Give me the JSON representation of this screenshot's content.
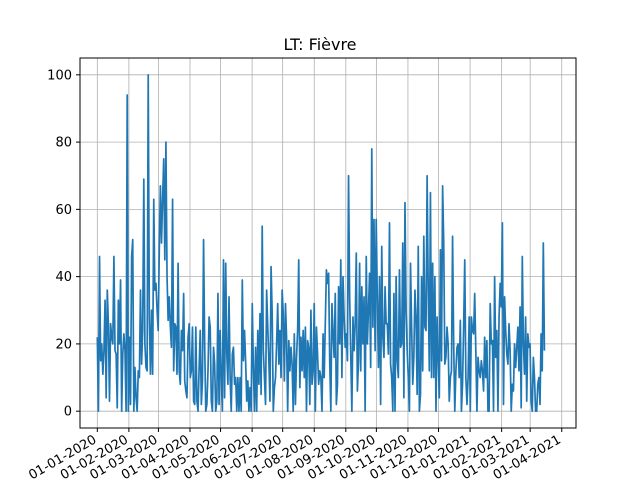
{
  "chart_data": {
    "type": "line",
    "title": "LT: Fièvre",
    "xlabel": "",
    "ylabel": "",
    "grid": true,
    "line_color": "#1f77b4",
    "x_start": "2020-01-01",
    "x_end": "2021-03-15",
    "xlim": [
      "2019-12-15",
      "2021-04-15"
    ],
    "ylim": [
      -5,
      105
    ],
    "x_ticks": [
      "01-01-2020",
      "01-02-2020",
      "01-03-2020",
      "01-04-2020",
      "01-05-2020",
      "01-06-2020",
      "01-07-2020",
      "01-08-2020",
      "01-09-2020",
      "01-10-2020",
      "01-11-2020",
      "01-12-2020",
      "01-01-2021",
      "01-02-2021",
      "01-03-2021",
      "01-04-2021"
    ],
    "y_ticks": [
      0,
      20,
      40,
      60,
      80,
      100
    ],
    "values": [
      22,
      0,
      46,
      15,
      20,
      11,
      18,
      33,
      4,
      36,
      26,
      3,
      26,
      22,
      20,
      46,
      18,
      17,
      1,
      33,
      20,
      39,
      0,
      17,
      23,
      18,
      0,
      94,
      0,
      22,
      2,
      46,
      51,
      0,
      13,
      4,
      0,
      12,
      10,
      36,
      14,
      24,
      69,
      20,
      13,
      12,
      100,
      28,
      11,
      30,
      11,
      63,
      36,
      38,
      30,
      24,
      48,
      67,
      50,
      63,
      75,
      45,
      80,
      40,
      27,
      34,
      25,
      19,
      63,
      12,
      26,
      25,
      11,
      44,
      12,
      8,
      24,
      18,
      35,
      9,
      6,
      4,
      22,
      26,
      10,
      12,
      25,
      3,
      2,
      25,
      3,
      0,
      13,
      24,
      2,
      9,
      51,
      20,
      0,
      2,
      12,
      28,
      25,
      3,
      0,
      19,
      14,
      0,
      3,
      35,
      2,
      24,
      10,
      0,
      45,
      4,
      44,
      17,
      8,
      34,
      10,
      0,
      17,
      19,
      8,
      10,
      0,
      10,
      0,
      10,
      0,
      39,
      15,
      24,
      15,
      3,
      9,
      0,
      7,
      0,
      32,
      13,
      0,
      19,
      0,
      24,
      8,
      29,
      5,
      55,
      18,
      10,
      2,
      36,
      25,
      15,
      3,
      43,
      29,
      0,
      7,
      10,
      20,
      32,
      14,
      24,
      10,
      36,
      29,
      9,
      32,
      22,
      0,
      21,
      12,
      19,
      14,
      0,
      23,
      2,
      16,
      24,
      45,
      7,
      22,
      12,
      24,
      10,
      25,
      0,
      21,
      19,
      2,
      30,
      8,
      12,
      32,
      0,
      25,
      17,
      8,
      12,
      10,
      0,
      23,
      10,
      26,
      42,
      38,
      41,
      15,
      0,
      32,
      23,
      16,
      35,
      2,
      8,
      37,
      20,
      45,
      10,
      40,
      28,
      19,
      23,
      15,
      70,
      34,
      17,
      0,
      28,
      18,
      26,
      47,
      6,
      15,
      44,
      12,
      37,
      20,
      34,
      0,
      46,
      20,
      30,
      41,
      13,
      78,
      25,
      57,
      18,
      57,
      34,
      13,
      40,
      2,
      49,
      22,
      16,
      37,
      26,
      26,
      17,
      56,
      14,
      10,
      0,
      35,
      0,
      40,
      15,
      10,
      42,
      19,
      20,
      50,
      4,
      62,
      30,
      18,
      10,
      0,
      44,
      25,
      8,
      16,
      36,
      28,
      5,
      49,
      0,
      5,
      40,
      12,
      52,
      25,
      24,
      70,
      36,
      12,
      65,
      10,
      44,
      10,
      40,
      0,
      28,
      16,
      4,
      48,
      15,
      67,
      50,
      14,
      16,
      25,
      20,
      3,
      10,
      12,
      52,
      20,
      0,
      12,
      19,
      20,
      10,
      27,
      0,
      8,
      25,
      45,
      10,
      2,
      10,
      28,
      0,
      28,
      24,
      23,
      35,
      18,
      0,
      16,
      12,
      10,
      15,
      12,
      6,
      22,
      10,
      21,
      0,
      0,
      32,
      20,
      21,
      0,
      40,
      16,
      24,
      0,
      28,
      38,
      31,
      56,
      2,
      34,
      24,
      17,
      14,
      26,
      18,
      0,
      8,
      6,
      20,
      13,
      19,
      25,
      12,
      31,
      1,
      46,
      20,
      11,
      28,
      3,
      23,
      19,
      20,
      3,
      0,
      16,
      10,
      0,
      0,
      8,
      10,
      2,
      23,
      12,
      50,
      18
    ]
  }
}
